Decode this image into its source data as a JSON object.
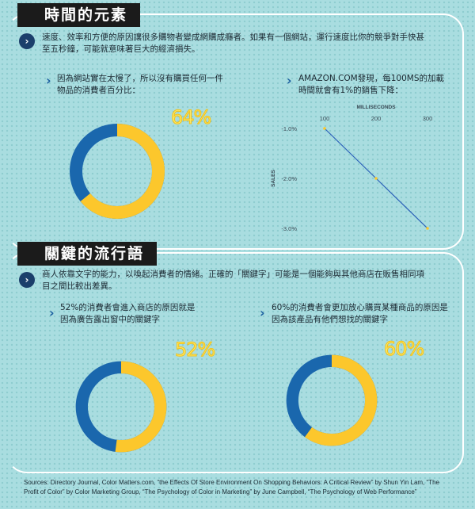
{
  "section1": {
    "title": "時間的元素",
    "intro": "速度、效率和方便的原因讓很多購物者變成網購成癮者。如果有一個網站，運行速度比你的競爭對手快甚至五秒鐘，可能就意味著巨大的經濟損失。",
    "item1_text": "因為網站實在太慢了，所以沒有購買任何一件物品的消費者百分比：",
    "item1_percent": "64%",
    "item1_value": 0.64,
    "item2_text": "AMAZON.COM發現，每100MS的加載時間就會有1%的銷售下降：",
    "chart_data": {
      "type": "line",
      "xlabel": "MILLISECONDS",
      "ylabel": "SALES",
      "x_ticks": [
        "100",
        "200",
        "300"
      ],
      "y_ticks": [
        "-1.0%",
        "-2.0%",
        "-3.0%"
      ],
      "x": [
        100,
        200,
        300
      ],
      "y": [
        -1.0,
        -2.0,
        -3.0
      ],
      "xlim": [
        100,
        300
      ],
      "ylim": [
        -3.0,
        -1.0
      ],
      "grid": false
    }
  },
  "section2": {
    "title": "關鍵的流行語",
    "intro": "商人依靠文字的能力，以喚起消費者的情緒。正確的「關鍵字」可能是一個能夠與其他商店在販售相同項目之間比較出差異。",
    "item1_text": "52%的消費者會進入商店的原因就是因為廣告露出窗中的關鍵字",
    "item1_percent": "52%",
    "item1_value": 0.52,
    "item2_text": "60%的消費者會更加放心購買某種商品的原因是因為該產品有他們想找的關鍵字",
    "item2_percent": "60%",
    "item2_value": 0.6
  },
  "sources": "Sources: Directory Journal, Color Matters.com, “the Effects Of Store Environment On Shopping Behaviors: A Critical Review” by Shun Yin Lam, “The Profit of Color” by Color Marketing Group, “The Psychology of Color in Marketing” by June Campbell, “The Psychology of Web Performance”",
  "colors": {
    "blue": "#1a67ad",
    "yellow": "#fcc72c",
    "dark": "#1b1b1b",
    "line": "#2a5fb8"
  }
}
